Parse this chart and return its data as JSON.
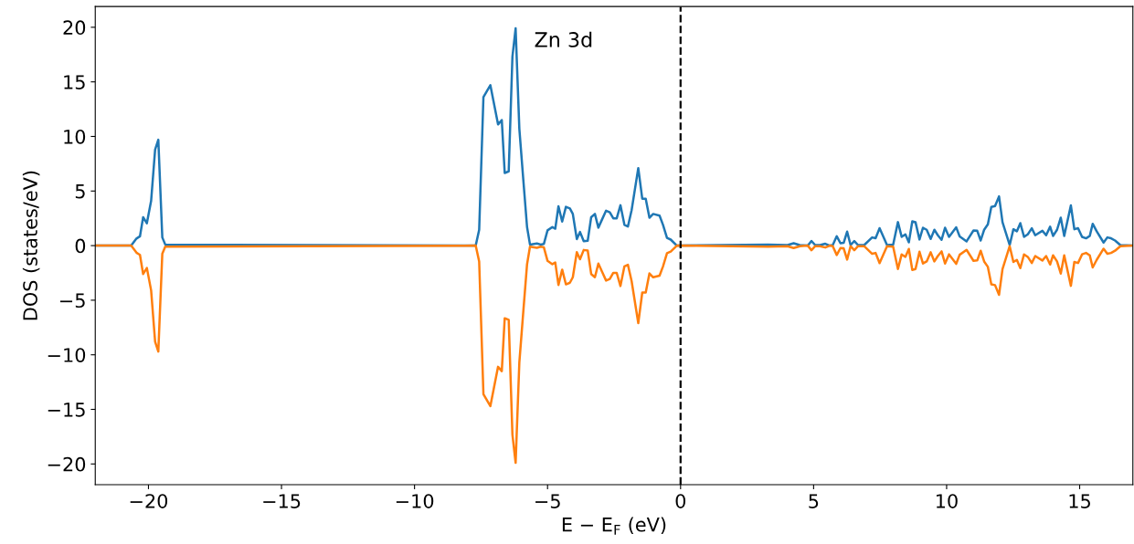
{
  "chart_data": {
    "type": "line",
    "xlabel": "E − E$_{F}$ (eV)",
    "ylabel": "DOS (states/eV)",
    "x": [
      -22.0,
      -20.65,
      -20.45,
      -20.32,
      -20.2,
      -20.06,
      -19.9,
      -19.75,
      -19.63,
      -19.48,
      -19.37,
      -7.7,
      -7.57,
      -7.41,
      -7.15,
      -6.86,
      -6.72,
      -6.61,
      -6.46,
      -6.32,
      -6.2,
      -6.06,
      -5.91,
      -5.77,
      -5.66,
      -5.4,
      -5.26,
      -5.14,
      -5.0,
      -4.82,
      -4.71,
      -4.59,
      -4.45,
      -4.31,
      -4.16,
      -4.05,
      -3.9,
      -3.78,
      -3.64,
      -3.49,
      -3.36,
      -3.22,
      -3.09,
      -2.95,
      -2.8,
      -2.66,
      -2.53,
      -2.4,
      -2.26,
      -2.11,
      -1.98,
      -1.84,
      -1.59,
      -1.44,
      -1.31,
      -1.17,
      -1.03,
      -0.79,
      -0.66,
      -0.51,
      -0.37,
      -0.14,
      3.29,
      4.02,
      4.25,
      4.48,
      4.78,
      4.92,
      5.06,
      5.24,
      5.44,
      5.61,
      5.72,
      5.87,
      6.01,
      6.13,
      6.26,
      6.39,
      6.53,
      6.67,
      6.9,
      7.2,
      7.33,
      7.48,
      7.76,
      7.99,
      8.17,
      8.31,
      8.45,
      8.58,
      8.71,
      8.83,
      8.98,
      9.11,
      9.25,
      9.4,
      9.54,
      9.67,
      9.81,
      9.94,
      10.09,
      10.36,
      10.49,
      10.75,
      11.01,
      11.15,
      11.28,
      11.41,
      11.55,
      11.68,
      11.82,
      11.97,
      12.1,
      12.37,
      12.51,
      12.64,
      12.77,
      12.91,
      13.05,
      13.2,
      13.33,
      13.6,
      13.74,
      13.89,
      14.0,
      14.15,
      14.29,
      14.42,
      14.67,
      14.8,
      14.94,
      15.09,
      15.24,
      15.38,
      15.49,
      15.64,
      15.9,
      16.04,
      16.18,
      16.33,
      16.53,
      17.0
    ],
    "series": [
      {
        "color": "#1f77b4",
        "values": [
          0,
          0,
          0.65,
          0.85,
          2.6,
          2.05,
          4.1,
          8.8,
          9.7,
          0.75,
          0.1,
          0,
          1.45,
          13.6,
          14.7,
          11.1,
          11.5,
          6.65,
          6.8,
          17.3,
          19.9,
          10.7,
          6.0,
          1.7,
          0.1,
          0.2,
          0.1,
          0.15,
          1.4,
          1.7,
          1.55,
          3.6,
          2.2,
          3.55,
          3.4,
          2.9,
          0.6,
          1.25,
          0.4,
          0.45,
          2.6,
          2.9,
          1.65,
          2.4,
          3.2,
          3.05,
          2.5,
          2.5,
          3.7,
          1.9,
          1.75,
          3.25,
          7.1,
          4.3,
          4.3,
          2.55,
          2.9,
          2.75,
          1.9,
          0.7,
          0.55,
          0,
          0.1,
          0.05,
          0.22,
          0.05,
          0,
          0.42,
          0.05,
          0.05,
          0.17,
          0,
          0.05,
          0.86,
          0.22,
          0.25,
          1.28,
          0.05,
          0.42,
          0.05,
          0.05,
          0.75,
          0.67,
          1.6,
          0.05,
          0.1,
          2.15,
          0.8,
          1.03,
          0.3,
          2.23,
          2.15,
          0.56,
          1.64,
          1.45,
          0.61,
          1.45,
          0.95,
          0.53,
          1.64,
          0.8,
          1.67,
          0.84,
          0.39,
          1.39,
          1.36,
          0.47,
          1.45,
          1.95,
          3.54,
          3.62,
          4.51,
          2.15,
          0.05,
          1.5,
          1.31,
          2.06,
          0.8,
          1.03,
          1.59,
          0.95,
          1.36,
          0.95,
          1.73,
          0.89,
          1.45,
          2.56,
          0.89,
          3.68,
          1.5,
          1.59,
          0.8,
          0.67,
          0.89,
          2.0,
          1.31,
          0.28,
          0.75,
          0.67,
          0.47,
          0.05,
          0
        ]
      },
      {
        "color": "#ff7f0e",
        "values": [
          0,
          0,
          -0.65,
          -0.85,
          -2.6,
          -2.05,
          -4.1,
          -8.8,
          -9.7,
          -0.75,
          -0.1,
          0,
          -1.45,
          -13.6,
          -14.7,
          -11.1,
          -11.5,
          -6.65,
          -6.8,
          -17.3,
          -19.9,
          -10.7,
          -6.0,
          -1.7,
          -0.1,
          -0.2,
          -0.1,
          -0.15,
          -1.4,
          -1.7,
          -1.55,
          -3.6,
          -2.2,
          -3.55,
          -3.4,
          -2.9,
          -0.6,
          -1.25,
          -0.4,
          -0.45,
          -2.6,
          -2.9,
          -1.65,
          -2.4,
          -3.2,
          -3.05,
          -2.5,
          -2.5,
          -3.7,
          -1.9,
          -1.75,
          -3.25,
          -7.1,
          -4.3,
          -4.3,
          -2.55,
          -2.9,
          -2.75,
          -1.9,
          -0.7,
          -0.55,
          0,
          -0.1,
          -0.05,
          -0.22,
          -0.05,
          0,
          -0.42,
          -0.05,
          -0.05,
          -0.17,
          0,
          -0.05,
          -0.86,
          -0.22,
          -0.25,
          -1.28,
          -0.05,
          -0.42,
          -0.05,
          -0.05,
          -0.75,
          -0.67,
          -1.6,
          -0.05,
          -0.1,
          -2.15,
          -0.8,
          -1.03,
          -0.3,
          -2.23,
          -2.15,
          -0.56,
          -1.64,
          -1.45,
          -0.61,
          -1.45,
          -0.95,
          -0.53,
          -1.64,
          -0.8,
          -1.67,
          -0.84,
          -0.39,
          -1.39,
          -1.36,
          -0.47,
          -1.45,
          -1.95,
          -3.54,
          -3.62,
          -4.51,
          -2.15,
          -0.05,
          -1.5,
          -1.31,
          -2.06,
          -0.8,
          -1.03,
          -1.59,
          -0.95,
          -1.36,
          -0.95,
          -1.73,
          -0.89,
          -1.45,
          -2.56,
          -0.89,
          -3.68,
          -1.5,
          -1.59,
          -0.8,
          -0.67,
          -0.89,
          -2.0,
          -1.31,
          -0.28,
          -0.75,
          -0.67,
          -0.47,
          -0.05,
          0
        ]
      }
    ],
    "xlim": [
      -22,
      17
    ],
    "ylim": [
      -21.9,
      21.9
    ],
    "xticks": [
      -20,
      -15,
      -10,
      -5,
      0,
      5,
      10,
      15
    ],
    "yticks": [
      -20,
      -15,
      -10,
      -5,
      0,
      5,
      10,
      15,
      20
    ],
    "ref_lines": [
      {
        "axis": "x",
        "value": 0,
        "color": "#000000",
        "line_style": "dashed"
      }
    ],
    "annotations": [
      "Zn 3d"
    ],
    "grid": false,
    "legend": false,
    "marker": "none",
    "line_style": "solid"
  }
}
